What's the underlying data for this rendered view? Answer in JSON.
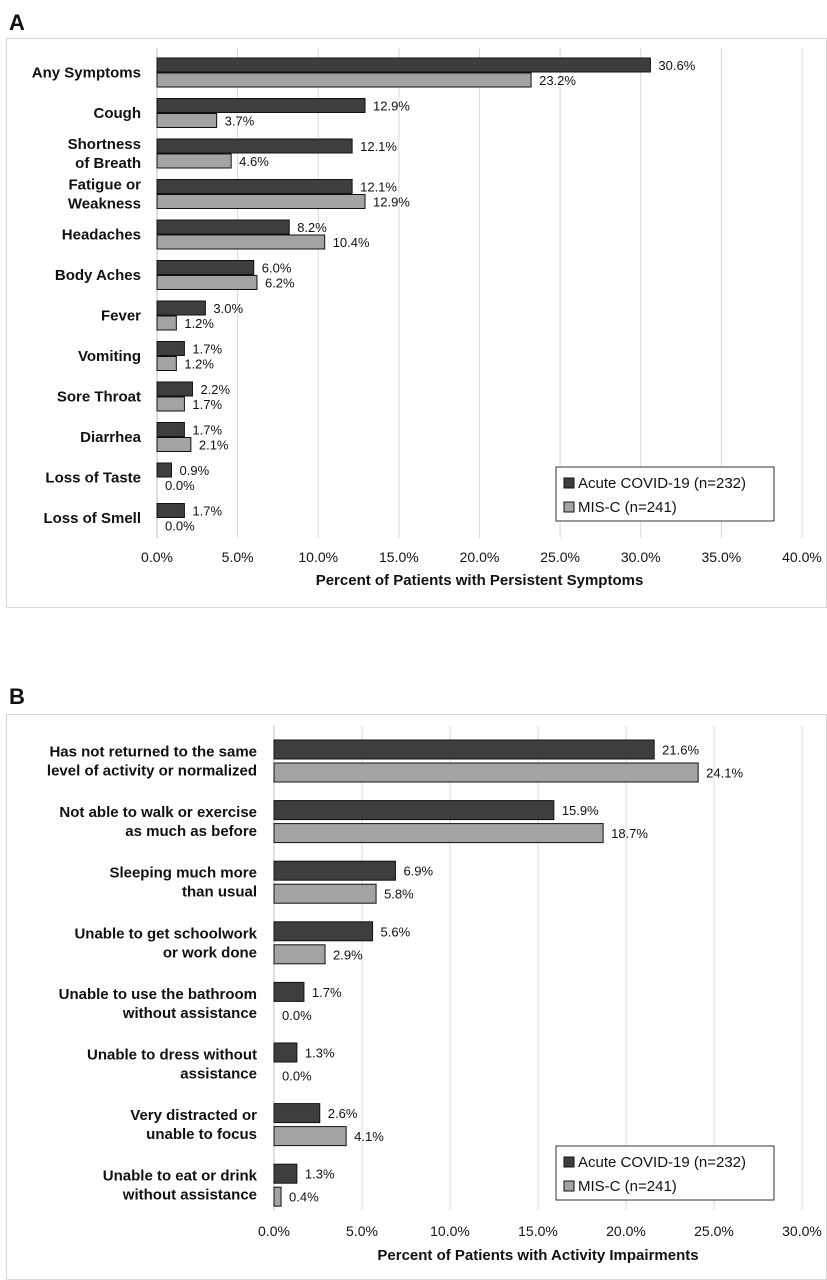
{
  "colors": {
    "series1": "#3e3e3e",
    "series2": "#a3a3a3",
    "grid": "#d9d9d9",
    "stroke": "#111111"
  },
  "chart_data": [
    {
      "panel": "A",
      "type": "bar",
      "orientation": "horizontal",
      "categories": [
        [
          "Any Symptoms"
        ],
        [
          "Cough"
        ],
        [
          "Shortness",
          "of Breath"
        ],
        [
          "Fatigue or",
          "Weakness"
        ],
        [
          "Headaches"
        ],
        [
          "Body Aches"
        ],
        [
          "Fever"
        ],
        [
          "Vomiting"
        ],
        [
          "Sore Throat"
        ],
        [
          "Diarrhea"
        ],
        [
          "Loss of Taste"
        ],
        [
          "Loss of Smell"
        ]
      ],
      "series": [
        {
          "name": "Acute COVID-19 (n=232)",
          "values": [
            30.6,
            12.9,
            12.1,
            12.1,
            8.2,
            6.0,
            3.0,
            1.7,
            2.2,
            1.7,
            0.9,
            1.7
          ]
        },
        {
          "name": "MIS-C (n=241)",
          "values": [
            23.2,
            3.7,
            4.6,
            12.9,
            10.4,
            6.2,
            1.2,
            1.2,
            1.7,
            2.1,
            0.0,
            0.0
          ]
        }
      ],
      "xlim": [
        0,
        40
      ],
      "xticks": [
        0,
        5,
        10,
        15,
        20,
        25,
        30,
        35,
        40
      ],
      "xlabel": "Percent of Patients with Persistent Symptoms",
      "ylabel": "",
      "title": "",
      "grid": true,
      "legend_position": "bottom-right"
    },
    {
      "panel": "B",
      "type": "bar",
      "orientation": "horizontal",
      "categories": [
        [
          "Has not returned to the same",
          "level of activity or normalized"
        ],
        [
          "Not able to walk or exercise",
          "as much as before"
        ],
        [
          "Sleeping much more",
          "than usual"
        ],
        [
          "Unable to get schoolwork",
          "or work done"
        ],
        [
          "Unable to use the bathroom",
          "without assistance"
        ],
        [
          "Unable to dress without",
          "assistance"
        ],
        [
          "Very distracted or",
          "unable to focus"
        ],
        [
          "Unable to eat or drink",
          "without assistance"
        ]
      ],
      "series": [
        {
          "name": "Acute COVID-19 (n=232)",
          "values": [
            21.6,
            15.9,
            6.9,
            5.6,
            1.7,
            1.3,
            2.6,
            1.3
          ]
        },
        {
          "name": "MIS-C (n=241)",
          "values": [
            24.1,
            18.7,
            5.8,
            2.9,
            0.0,
            0.0,
            4.1,
            0.4
          ]
        }
      ],
      "xlim": [
        0,
        30
      ],
      "xticks": [
        0,
        5,
        10,
        15,
        20,
        25,
        30
      ],
      "xlabel": "Percent of Patients with Activity Impairments",
      "ylabel": "",
      "title": "",
      "grid": true,
      "legend_position": "bottom-right"
    }
  ]
}
